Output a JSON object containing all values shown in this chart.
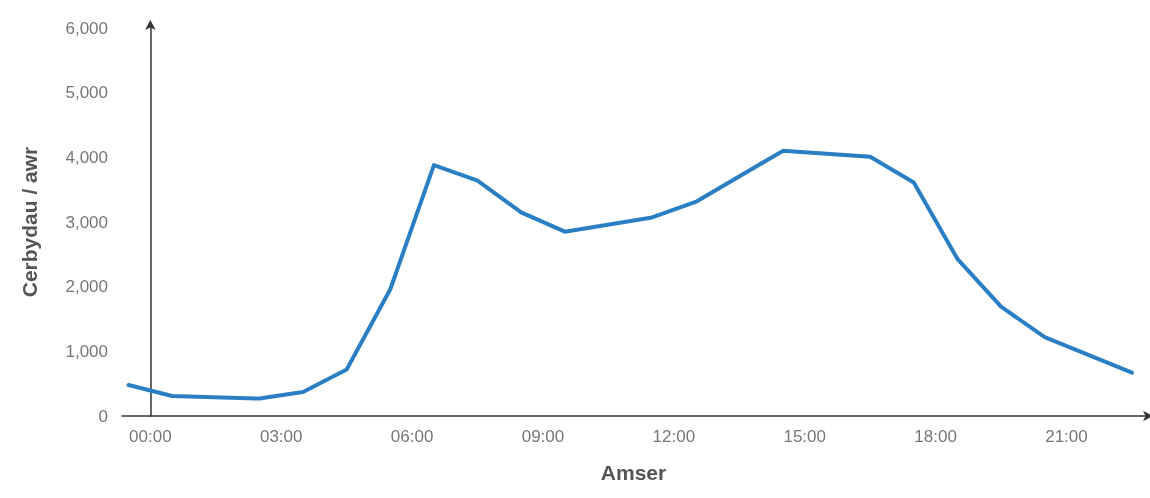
{
  "chart_data": {
    "type": "line",
    "xlabel": "Amser",
    "ylabel": "Cerbydau / awr",
    "x": [
      -0.5,
      0.5,
      2.5,
      3.5,
      4.5,
      5.5,
      6.5,
      7.5,
      8.5,
      9.5,
      11.5,
      12.5,
      14.5,
      16.5,
      17.5,
      18.5,
      19.5,
      20.5,
      22.5
    ],
    "series": [
      {
        "color": "#2a7fc4",
        "values": [
          480,
          310,
          270,
          370,
          720,
          1960,
          3880,
          3640,
          3150,
          2850,
          3070,
          3310,
          4100,
          4010,
          3610,
          2430,
          1690,
          1220,
          670
        ]
      }
    ],
    "xlim": [
      -0.65,
      22.8
    ],
    "xticks": [
      {
        "value": 0,
        "label": "00:00"
      },
      {
        "value": 3,
        "label": "03:00"
      },
      {
        "value": 6,
        "label": "06:00"
      },
      {
        "value": 9,
        "label": "09:00"
      },
      {
        "value": 12,
        "label": "12:00"
      },
      {
        "value": 15,
        "label": "15:00"
      },
      {
        "value": 18,
        "label": "18:00"
      },
      {
        "value": 21,
        "label": "21:00"
      }
    ],
    "ylim": [
      0,
      6000
    ],
    "yticks": [
      0,
      {
        "value": 1000,
        "label": "1,000"
      },
      {
        "value": 2000,
        "label": "2,000"
      },
      {
        "value": 3000,
        "label": "3,000"
      },
      {
        "value": 4000,
        "label": "4,000"
      },
      {
        "value": 5000,
        "label": "5,000"
      },
      {
        "value": 6000,
        "label": "6,000"
      }
    ],
    "grid": false,
    "marker": "none",
    "line_style": "solid"
  }
}
